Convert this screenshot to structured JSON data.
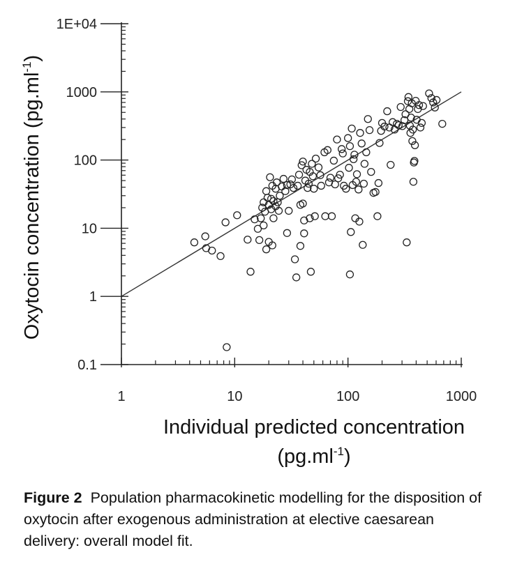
{
  "chart_data": {
    "type": "scatter",
    "xscale": "log",
    "yscale": "log",
    "xlim": [
      1,
      1000
    ],
    "ylim": [
      0.1,
      10000
    ],
    "x_ticks": [
      {
        "value": 1,
        "label": "1"
      },
      {
        "value": 10,
        "label": "10"
      },
      {
        "value": 100,
        "label": "100"
      },
      {
        "value": 1000,
        "label": "1000"
      }
    ],
    "y_ticks": [
      {
        "value": 0.1,
        "label": "0.1"
      },
      {
        "value": 1,
        "label": "1"
      },
      {
        "value": 10,
        "label": "10"
      },
      {
        "value": 100,
        "label": "100"
      },
      {
        "value": 1000,
        "label": "1000"
      },
      {
        "value": 10000,
        "label": "1E+04"
      }
    ],
    "xlabel": {
      "line1": "Individual predicted concentration",
      "line2_prefix": "(pg.ml",
      "line2_sup": "-1",
      "line2_suffix": ")"
    },
    "ylabel": {
      "prefix": "Oxytocin concentration (pg.ml",
      "sup": "-1",
      "suffix": ")"
    },
    "grid": false,
    "identity_line": {
      "x": [
        1,
        1000
      ],
      "y": [
        1,
        1000
      ]
    },
    "marker": "open-circle",
    "points": [
      {
        "x": 4.4,
        "y": 6.2
      },
      {
        "x": 5.5,
        "y": 7.6
      },
      {
        "x": 5.6,
        "y": 5.1
      },
      {
        "x": 6.3,
        "y": 4.7
      },
      {
        "x": 7.5,
        "y": 3.9
      },
      {
        "x": 8.3,
        "y": 12.2
      },
      {
        "x": 8.5,
        "y": 0.18
      },
      {
        "x": 10.5,
        "y": 15.5
      },
      {
        "x": 13,
        "y": 6.8
      },
      {
        "x": 13.8,
        "y": 2.3
      },
      {
        "x": 15,
        "y": 13.5
      },
      {
        "x": 16,
        "y": 9.8
      },
      {
        "x": 16.5,
        "y": 6.7
      },
      {
        "x": 17,
        "y": 14
      },
      {
        "x": 17.5,
        "y": 20
      },
      {
        "x": 18,
        "y": 24
      },
      {
        "x": 18,
        "y": 11
      },
      {
        "x": 18.5,
        "y": 17.5
      },
      {
        "x": 19,
        "y": 4.9
      },
      {
        "x": 19,
        "y": 35
      },
      {
        "x": 19.5,
        "y": 28
      },
      {
        "x": 20,
        "y": 22
      },
      {
        "x": 20,
        "y": 6.3
      },
      {
        "x": 20.5,
        "y": 56
      },
      {
        "x": 21,
        "y": 19
      },
      {
        "x": 21,
        "y": 27
      },
      {
        "x": 21.5,
        "y": 42
      },
      {
        "x": 21.5,
        "y": 5.6
      },
      {
        "x": 22,
        "y": 25
      },
      {
        "x": 22,
        "y": 14
      },
      {
        "x": 23,
        "y": 21
      },
      {
        "x": 23,
        "y": 38
      },
      {
        "x": 23.5,
        "y": 47
      },
      {
        "x": 24,
        "y": 24
      },
      {
        "x": 24.5,
        "y": 18
      },
      {
        "x": 25,
        "y": 30
      },
      {
        "x": 26,
        "y": 41
      },
      {
        "x": 27,
        "y": 53
      },
      {
        "x": 28,
        "y": 35
      },
      {
        "x": 29,
        "y": 43
      },
      {
        "x": 29,
        "y": 8.5
      },
      {
        "x": 30,
        "y": 18
      },
      {
        "x": 31,
        "y": 44
      },
      {
        "x": 32,
        "y": 52
      },
      {
        "x": 33,
        "y": 39
      },
      {
        "x": 34,
        "y": 3.5
      },
      {
        "x": 35,
        "y": 1.9
      },
      {
        "x": 36,
        "y": 42
      },
      {
        "x": 37,
        "y": 61
      },
      {
        "x": 38,
        "y": 22
      },
      {
        "x": 38,
        "y": 5.5
      },
      {
        "x": 39,
        "y": 84
      },
      {
        "x": 40,
        "y": 95
      },
      {
        "x": 40,
        "y": 23
      },
      {
        "x": 41,
        "y": 13
      },
      {
        "x": 41,
        "y": 8.4
      },
      {
        "x": 42,
        "y": 50
      },
      {
        "x": 43,
        "y": 72
      },
      {
        "x": 44,
        "y": 39
      },
      {
        "x": 45,
        "y": 45
      },
      {
        "x": 46,
        "y": 67
      },
      {
        "x": 46,
        "y": 14
      },
      {
        "x": 47,
        "y": 2.3
      },
      {
        "x": 48,
        "y": 88
      },
      {
        "x": 49,
        "y": 58
      },
      {
        "x": 50,
        "y": 38
      },
      {
        "x": 51,
        "y": 15
      },
      {
        "x": 52,
        "y": 105
      },
      {
        "x": 55,
        "y": 78
      },
      {
        "x": 57,
        "y": 60
      },
      {
        "x": 58,
        "y": 42
      },
      {
        "x": 62,
        "y": 130
      },
      {
        "x": 63,
        "y": 15
      },
      {
        "x": 66,
        "y": 140
      },
      {
        "x": 68,
        "y": 47
      },
      {
        "x": 70,
        "y": 55
      },
      {
        "x": 72,
        "y": 15
      },
      {
        "x": 75,
        "y": 98
      },
      {
        "x": 77,
        "y": 44
      },
      {
        "x": 80,
        "y": 200
      },
      {
        "x": 82,
        "y": 54
      },
      {
        "x": 85,
        "y": 61
      },
      {
        "x": 88,
        "y": 145
      },
      {
        "x": 90,
        "y": 125
      },
      {
        "x": 92,
        "y": 42
      },
      {
        "x": 96,
        "y": 38
      },
      {
        "x": 100,
        "y": 210
      },
      {
        "x": 102,
        "y": 77
      },
      {
        "x": 104,
        "y": 160
      },
      {
        "x": 104,
        "y": 2.1
      },
      {
        "x": 106,
        "y": 8.8
      },
      {
        "x": 108,
        "y": 290
      },
      {
        "x": 110,
        "y": 43
      },
      {
        "x": 112,
        "y": 103
      },
      {
        "x": 114,
        "y": 120
      },
      {
        "x": 116,
        "y": 14
      },
      {
        "x": 118,
        "y": 48
      },
      {
        "x": 120,
        "y": 62
      },
      {
        "x": 124,
        "y": 37
      },
      {
        "x": 126,
        "y": 12.5
      },
      {
        "x": 128,
        "y": 250
      },
      {
        "x": 132,
        "y": 175
      },
      {
        "x": 135,
        "y": 5.7
      },
      {
        "x": 138,
        "y": 45
      },
      {
        "x": 140,
        "y": 88
      },
      {
        "x": 145,
        "y": 130
      },
      {
        "x": 150,
        "y": 400
      },
      {
        "x": 155,
        "y": 275
      },
      {
        "x": 160,
        "y": 67
      },
      {
        "x": 168,
        "y": 33
      },
      {
        "x": 175,
        "y": 34
      },
      {
        "x": 182,
        "y": 15
      },
      {
        "x": 186,
        "y": 46
      },
      {
        "x": 190,
        "y": 178
      },
      {
        "x": 196,
        "y": 268
      },
      {
        "x": 200,
        "y": 350
      },
      {
        "x": 210,
        "y": 310
      },
      {
        "x": 222,
        "y": 520
      },
      {
        "x": 232,
        "y": 300
      },
      {
        "x": 238,
        "y": 85
      },
      {
        "x": 248,
        "y": 360
      },
      {
        "x": 258,
        "y": 280
      },
      {
        "x": 270,
        "y": 340
      },
      {
        "x": 280,
        "y": 325
      },
      {
        "x": 292,
        "y": 600
      },
      {
        "x": 302,
        "y": 315
      },
      {
        "x": 315,
        "y": 385
      },
      {
        "x": 322,
        "y": 470
      },
      {
        "x": 330,
        "y": 6.2
      },
      {
        "x": 338,
        "y": 730
      },
      {
        "x": 342,
        "y": 840
      },
      {
        "x": 348,
        "y": 560
      },
      {
        "x": 352,
        "y": 320
      },
      {
        "x": 356,
        "y": 250
      },
      {
        "x": 360,
        "y": 420
      },
      {
        "x": 366,
        "y": 680
      },
      {
        "x": 370,
        "y": 190
      },
      {
        "x": 374,
        "y": 280
      },
      {
        "x": 378,
        "y": 48
      },
      {
        "x": 382,
        "y": 92
      },
      {
        "x": 386,
        "y": 97
      },
      {
        "x": 390,
        "y": 165
      },
      {
        "x": 396,
        "y": 740
      },
      {
        "x": 404,
        "y": 390
      },
      {
        "x": 414,
        "y": 560
      },
      {
        "x": 424,
        "y": 640
      },
      {
        "x": 436,
        "y": 300
      },
      {
        "x": 448,
        "y": 350
      },
      {
        "x": 460,
        "y": 620
      },
      {
        "x": 520,
        "y": 950
      },
      {
        "x": 545,
        "y": 810
      },
      {
        "x": 565,
        "y": 700
      },
      {
        "x": 585,
        "y": 590
      },
      {
        "x": 605,
        "y": 760
      },
      {
        "x": 680,
        "y": 340
      }
    ]
  },
  "caption": {
    "label": "Figure 2",
    "text": "Population pharmacokinetic modelling for the disposition of oxytocin after exogenous administration at elective caesarean delivery: overall model fit."
  }
}
